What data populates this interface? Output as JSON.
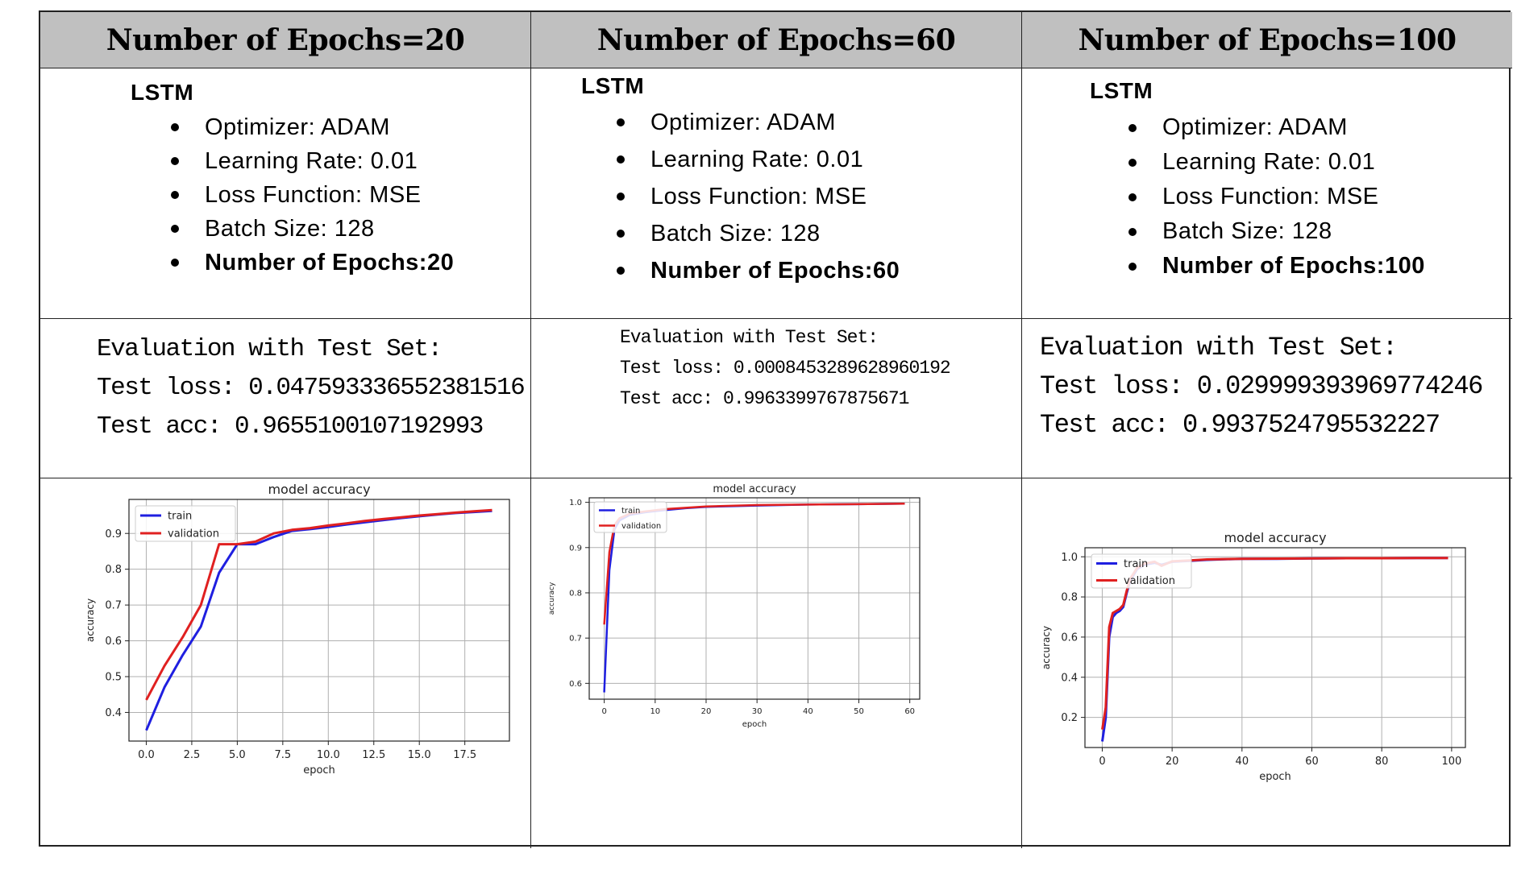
{
  "headers": [
    "Number of Epochs=20",
    "Number of Epochs=60",
    "Number of Epochs=100"
  ],
  "columns": [
    {
      "model": "LSTM",
      "params": [
        "Optimizer: ADAM",
        "Learning Rate: 0.01",
        "Loss Function: MSE",
        "Batch Size: 128",
        "Number of Epochs:20"
      ],
      "evaluation": {
        "title": "Evaluation with Test Set:",
        "loss": "Test loss: 0.047593336552381516",
        "acc": "Test acc: 0.9655100107192993"
      }
    },
    {
      "model": "LSTM",
      "params": [
        "Optimizer: ADAM",
        "Learning Rate: 0.01",
        "Loss Function: MSE",
        "Batch Size: 128",
        "Number of Epochs:60"
      ],
      "evaluation": {
        "title": "Evaluation with Test Set:",
        "loss": "Test loss: 0.0008453289628960192",
        "acc": "Test acc: 0.9963399767875671"
      }
    },
    {
      "model": "LSTM",
      "params": [
        "Optimizer: ADAM",
        "Learning Rate: 0.01",
        "Loss Function: MSE",
        "Batch Size: 128",
        "Number of Epochs:100"
      ],
      "evaluation": {
        "title": "Evaluation with Test Set:",
        "loss": "Test loss: 0.029999393969774246",
        "acc": "Test acc: 0.9937524795532227"
      }
    }
  ],
  "chart_data": [
    {
      "type": "line",
      "title": "model accuracy",
      "xlabel": "epoch",
      "ylabel": "accuracy",
      "xlim": [
        -0.95,
        19.95
      ],
      "ylim": [
        0.32,
        0.995
      ],
      "xticks": [
        0.0,
        2.5,
        5.0,
        7.5,
        10.0,
        12.5,
        15.0,
        17.5
      ],
      "xtick_labels": [
        "0.0",
        "2.5",
        "5.0",
        "7.5",
        "10.0",
        "12.5",
        "15.0",
        "17.5"
      ],
      "yticks": [
        0.4,
        0.5,
        0.6,
        0.7,
        0.8,
        0.9
      ],
      "ytick_labels": [
        "0.4",
        "0.5",
        "0.6",
        "0.7",
        "0.8",
        "0.9"
      ],
      "grid": true,
      "legend": "upper left",
      "series": [
        {
          "name": "train",
          "color": "#1f1fe0",
          "x": [
            0,
            1,
            2,
            3,
            4,
            5,
            6,
            7,
            8,
            9,
            10,
            11,
            12,
            13,
            14,
            15,
            16,
            17,
            18,
            19
          ],
          "values": [
            0.35,
            0.47,
            0.56,
            0.64,
            0.79,
            0.87,
            0.87,
            0.89,
            0.907,
            0.912,
            0.918,
            0.925,
            0.931,
            0.937,
            0.943,
            0.948,
            0.953,
            0.957,
            0.96,
            0.963
          ]
        },
        {
          "name": "validation",
          "color": "#e02020",
          "x": [
            0,
            1,
            2,
            3,
            4,
            5,
            6,
            7,
            8,
            9,
            10,
            11,
            12,
            13,
            14,
            15,
            16,
            17,
            18,
            19
          ],
          "values": [
            0.435,
            0.53,
            0.61,
            0.7,
            0.87,
            0.87,
            0.877,
            0.9,
            0.91,
            0.915,
            0.922,
            0.928,
            0.935,
            0.94,
            0.945,
            0.95,
            0.954,
            0.958,
            0.962,
            0.965
          ]
        }
      ]
    },
    {
      "type": "line",
      "title": "model accuracy",
      "xlabel": "epoch",
      "ylabel": "accuracy",
      "xlim": [
        -2.95,
        61.95
      ],
      "ylim": [
        0.565,
        1.01
      ],
      "xticks": [
        0,
        10,
        20,
        30,
        40,
        50,
        60
      ],
      "xtick_labels": [
        "0",
        "10",
        "20",
        "30",
        "40",
        "50",
        "60"
      ],
      "yticks": [
        0.6,
        0.7,
        0.8,
        0.9,
        1.0
      ],
      "ytick_labels": [
        "0.6",
        "0.7",
        "0.8",
        "0.9",
        "1.0"
      ],
      "grid": true,
      "legend": "upper left",
      "series": [
        {
          "name": "train",
          "color": "#1f1fe0",
          "x": [
            0,
            1,
            2,
            3,
            5,
            8,
            12,
            16,
            20,
            30,
            40,
            50,
            59
          ],
          "values": [
            0.58,
            0.85,
            0.94,
            0.96,
            0.972,
            0.978,
            0.983,
            0.987,
            0.99,
            0.993,
            0.995,
            0.996,
            0.997
          ]
        },
        {
          "name": "validation",
          "color": "#e02020",
          "x": [
            0,
            1,
            2,
            3,
            5,
            8,
            12,
            16,
            20,
            30,
            40,
            50,
            59
          ],
          "values": [
            0.73,
            0.89,
            0.95,
            0.965,
            0.975,
            0.98,
            0.985,
            0.988,
            0.991,
            0.994,
            0.995,
            0.996,
            0.997
          ]
        }
      ]
    },
    {
      "type": "line",
      "title": "model accuracy",
      "xlabel": "epoch",
      "ylabel": "accuracy",
      "xlim": [
        -4.95,
        103.95
      ],
      "ylim": [
        0.05,
        1.045
      ],
      "xticks": [
        0,
        20,
        40,
        60,
        80,
        100
      ],
      "xtick_labels": [
        "0",
        "20",
        "40",
        "60",
        "80",
        "100"
      ],
      "yticks": [
        0.2,
        0.4,
        0.6,
        0.8,
        1.0
      ],
      "ytick_labels": [
        "0.2",
        "0.4",
        "0.6",
        "0.8",
        "1.0"
      ],
      "grid": true,
      "legend": "upper left",
      "series": [
        {
          "name": "train",
          "color": "#1f1fe0",
          "x": [
            0,
            1,
            2,
            3,
            4,
            5,
            6,
            7,
            8,
            10,
            12,
            15,
            17,
            20,
            25,
            30,
            40,
            50,
            60,
            70,
            80,
            90,
            99
          ],
          "values": [
            0.08,
            0.2,
            0.6,
            0.7,
            0.72,
            0.73,
            0.75,
            0.82,
            0.88,
            0.94,
            0.96,
            0.97,
            0.96,
            0.975,
            0.98,
            0.985,
            0.99,
            0.99,
            0.992,
            0.993,
            0.993,
            0.994,
            0.994
          ]
        },
        {
          "name": "validation",
          "color": "#e02020",
          "x": [
            0,
            1,
            2,
            3,
            4,
            5,
            6,
            7,
            8,
            10,
            12,
            15,
            17,
            20,
            25,
            30,
            40,
            50,
            60,
            70,
            80,
            90,
            99
          ],
          "values": [
            0.14,
            0.25,
            0.65,
            0.72,
            0.73,
            0.74,
            0.76,
            0.83,
            0.89,
            0.945,
            0.965,
            0.975,
            0.955,
            0.977,
            0.982,
            0.987,
            0.99,
            0.991,
            0.992,
            0.993,
            0.993,
            0.994,
            0.994
          ]
        }
      ]
    }
  ]
}
